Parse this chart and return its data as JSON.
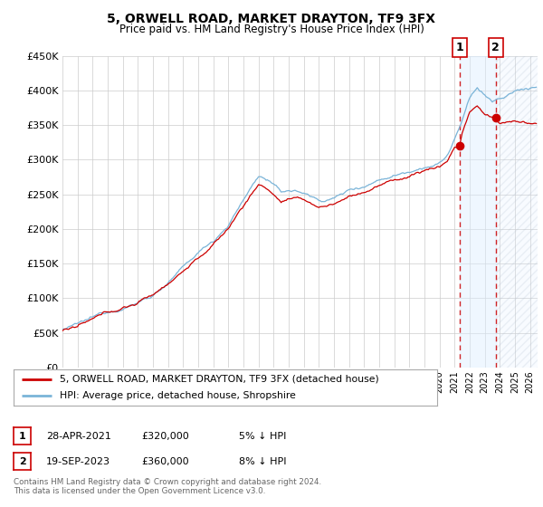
{
  "title": "5, ORWELL ROAD, MARKET DRAYTON, TF9 3FX",
  "subtitle": "Price paid vs. HM Land Registry's House Price Index (HPI)",
  "legend_line1": "5, ORWELL ROAD, MARKET DRAYTON, TF9 3FX (detached house)",
  "legend_line2": "HPI: Average price, detached house, Shropshire",
  "annotation1": {
    "label": "1",
    "date_str": "28-APR-2021",
    "price": 320000,
    "pct": "5% ↓ HPI"
  },
  "annotation2": {
    "label": "2",
    "date_str": "19-SEP-2023",
    "price": 360000,
    "pct": "8% ↓ HPI"
  },
  "sale1_x": 2021.33,
  "sale2_x": 2023.72,
  "sale1_y": 320000,
  "sale2_y": 360000,
  "hpi_color": "#7ab4d8",
  "price_color": "#cc0000",
  "dot_color": "#cc0000",
  "bg_color": "#ffffff",
  "grid_color": "#cccccc",
  "shade_color": "#ddeeff",
  "footer": "Contains HM Land Registry data © Crown copyright and database right 2024.\nThis data is licensed under the Open Government Licence v3.0.",
  "ylim": [
    0,
    450000
  ],
  "xlim_start": 1995.0,
  "xlim_end": 2026.5
}
